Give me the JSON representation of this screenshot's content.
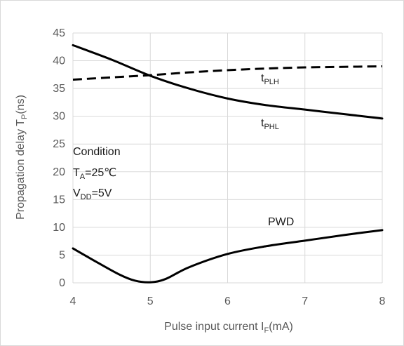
{
  "chart_data": {
    "type": "line",
    "xlabel": {
      "main": "Pulse input current I",
      "sub": "F",
      "tail": "(mA)"
    },
    "ylabel": {
      "main": "Propagation delay  T",
      "sub": "P",
      "tail": "(ns)"
    },
    "xlim": [
      4,
      8
    ],
    "ylim": [
      0,
      45
    ],
    "x_ticks": [
      "4",
      "5",
      "6",
      "7",
      "8"
    ],
    "y_ticks": [
      "0",
      "5",
      "10",
      "15",
      "20",
      "25",
      "30",
      "35",
      "40",
      "45"
    ],
    "grid": "horizontal",
    "series": [
      {
        "name_main": "t",
        "name_sub": "PLH",
        "style": "dashed",
        "color": "#000000",
        "x": [
          4,
          4.5,
          5,
          5.5,
          6,
          6.5,
          7,
          7.5,
          8
        ],
        "values": [
          36.6,
          37.0,
          37.4,
          37.9,
          38.3,
          38.6,
          38.8,
          38.9,
          39.0
        ]
      },
      {
        "name_main": "t",
        "name_sub": "PHL",
        "style": "solid",
        "color": "#000000",
        "x": [
          4,
          4.5,
          5,
          5.5,
          6,
          6.5,
          7,
          7.5,
          8
        ],
        "values": [
          42.8,
          40.2,
          37.3,
          35.0,
          33.2,
          32.0,
          31.2,
          30.4,
          29.6
        ]
      },
      {
        "name_main": "PWD",
        "name_sub": "",
        "style": "solid",
        "color": "#000000",
        "x": [
          4,
          4.3,
          4.6,
          4.8,
          5,
          5.2,
          5.5,
          6,
          6.5,
          7,
          7.5,
          8
        ],
        "values": [
          6.2,
          3.8,
          1.5,
          0.4,
          0.1,
          0.7,
          2.8,
          5.2,
          6.6,
          7.6,
          8.6,
          9.5
        ]
      }
    ],
    "annotations": {
      "condition": "Condition",
      "ta_main": "T",
      "ta_sub": "A",
      "ta_tail": "=25℃",
      "vdd_main": "V",
      "vdd_sub": "DD",
      "vdd_tail": "=5V"
    }
  }
}
